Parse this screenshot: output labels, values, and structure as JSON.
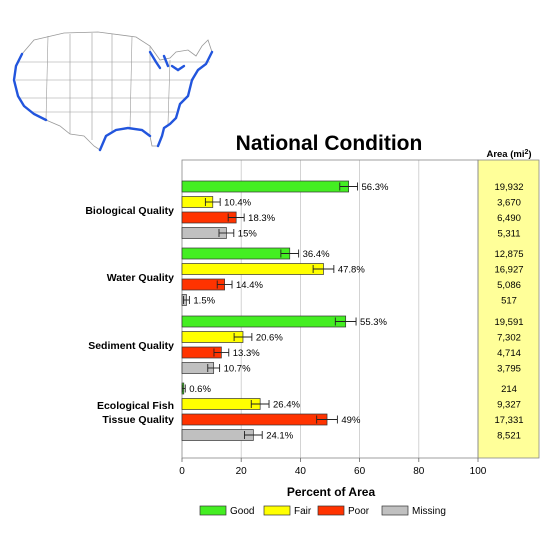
{
  "chart_data": {
    "type": "bar",
    "orientation": "horizontal",
    "title": "National Condition",
    "xlabel": "Percent of Area",
    "xlim": [
      0,
      100
    ],
    "xticks": [
      "0",
      "20",
      "40",
      "60",
      "80",
      "100"
    ],
    "grid": true,
    "legend_position": "bottom",
    "area_header": "Area (mi",
    "area_header_sup": "2",
    "area_header_end": ")",
    "categories": [
      {
        "name_lines": [
          "Biological Quality"
        ],
        "bars": [
          {
            "series": "Good",
            "value": 56.3,
            "error": 3,
            "label": "56.3%",
            "area": "19,932"
          },
          {
            "series": "Fair",
            "value": 10.4,
            "error": 2.5,
            "label": "10.4%",
            "area": "3,670"
          },
          {
            "series": "Poor",
            "value": 18.3,
            "error": 2.7,
            "label": "18.3%",
            "area": "6,490"
          },
          {
            "series": "Missing",
            "value": 15,
            "error": 2.5,
            "label": "15%",
            "area": "5,311"
          }
        ]
      },
      {
        "name_lines": [
          "Water Quality"
        ],
        "bars": [
          {
            "series": "Good",
            "value": 36.4,
            "error": 3,
            "label": "36.4%",
            "area": "12,875"
          },
          {
            "series": "Fair",
            "value": 47.8,
            "error": 3.5,
            "label": "47.8%",
            "area": "16,927"
          },
          {
            "series": "Poor",
            "value": 14.4,
            "error": 2.5,
            "label": "14.4%",
            "area": "5,086"
          },
          {
            "series": "Missing",
            "value": 1.5,
            "error": 1,
            "label": "1.5%",
            "area": "517"
          }
        ]
      },
      {
        "name_lines": [
          "Sediment Quality"
        ],
        "bars": [
          {
            "series": "Good",
            "value": 55.3,
            "error": 3.5,
            "label": "55.3%",
            "area": "19,591"
          },
          {
            "series": "Fair",
            "value": 20.6,
            "error": 3,
            "label": "20.6%",
            "area": "7,302"
          },
          {
            "series": "Poor",
            "value": 13.3,
            "error": 2.5,
            "label": "13.3%",
            "area": "4,714"
          },
          {
            "series": "Missing",
            "value": 10.7,
            "error": 2,
            "label": "10.7%",
            "area": "3,795"
          }
        ]
      },
      {
        "name_lines": [
          "Ecological Fish",
          "Tissue Quality"
        ],
        "bars": [
          {
            "series": "Good",
            "value": 0.6,
            "error": 0.5,
            "label": "0.6%",
            "area": "214"
          },
          {
            "series": "Fair",
            "value": 26.4,
            "error": 3,
            "label": "26.4%",
            "area": "9,327"
          },
          {
            "series": "Poor",
            "value": 49,
            "error": 3.5,
            "label": "49%",
            "area": "17,331"
          },
          {
            "series": "Missing",
            "value": 24.1,
            "error": 3,
            "label": "24.1%",
            "area": "8,521"
          }
        ]
      }
    ],
    "legend": [
      {
        "name": "Good",
        "color": "#44ee22"
      },
      {
        "name": "Fair",
        "color": "#ffff00"
      },
      {
        "name": "Poor",
        "color": "#ff3300"
      },
      {
        "name": "Missing",
        "color": "#c0c0c0"
      }
    ]
  },
  "colors": {
    "area_panel": "#ffff99",
    "grid": "#c8c8c8",
    "map_coast": "#2255dd",
    "map_land": "#ffffff",
    "map_border": "#999999"
  },
  "map": {
    "icon": "us-map-icon"
  }
}
